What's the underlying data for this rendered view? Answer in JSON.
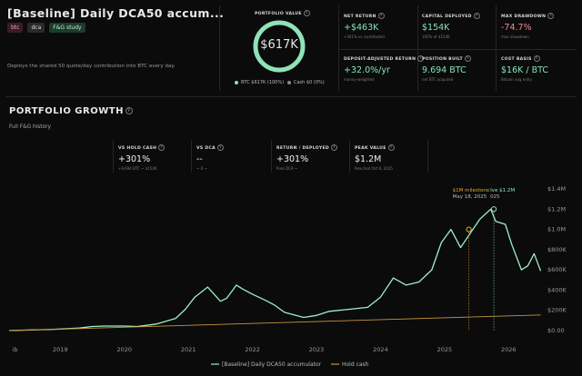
{
  "header": {
    "title": "[Baseline] Daily DCA50 accum...",
    "tags": [
      "btc",
      "dca",
      "F&G study"
    ],
    "description": "Deploys the shared 50 quote/day contribution into BTC every day."
  },
  "portfolio_value": {
    "label": "PORTFOLIO VALUE",
    "value": "$617K",
    "legend_btc": "BTC $617K (100%)",
    "legend_cash": "Cash $0 (0%)",
    "btc_color": "#8fe3b7",
    "cash_color": "#8a8a8a"
  },
  "stats": [
    {
      "label": "NET RETURN",
      "value": "+$463K",
      "sub": "+301% vs contributed",
      "color": "green"
    },
    {
      "label": "CAPITAL DEPLOYED",
      "value": "$154K",
      "sub": "100% of $154K",
      "color": "green"
    },
    {
      "label": "MAX DRAWDOWN",
      "value": "-74.7%",
      "sub": "max drawdown",
      "color": "red"
    },
    {
      "label": "DEPOSIT-ADJUSTED RETURN",
      "value": "+32.0%/yr",
      "sub": "money-weighted",
      "color": "green"
    },
    {
      "label": "POSITION BUILT",
      "value": "9.694 BTC",
      "sub": "net BTC acquired",
      "color": "green"
    },
    {
      "label": "COST BASIS",
      "value": "$16K / BTC",
      "sub": "Bitcoin avg entry",
      "color": "green"
    }
  ],
  "growth": {
    "title": "PORTFOLIO GROWTH",
    "subtitle": "Full F&G history",
    "kpis": [
      {
        "label": "VS HOLD CASH",
        "value": "+301%",
        "sub": "+9,694 BTC ~ $154K"
      },
      {
        "label": "VS DCA",
        "value": "--",
        "sub": "~ 0 ~"
      },
      {
        "label": "RETURN / DEPLOYED",
        "value": "+301%",
        "sub": "Pure DCA ~"
      },
      {
        "label": "PEAK VALUE",
        "value": "$1.2M",
        "sub": "Reached Oct 6, 2025"
      }
    ]
  },
  "chart_data": {
    "type": "line",
    "x_ticks": [
      "ib",
      "2019",
      "2020",
      "2021",
      "2022",
      "2023",
      "2024",
      "2025",
      "2026"
    ],
    "y_ticks": [
      "$1.4M",
      "$1.2M",
      "$1.0M",
      "$800K",
      "$600K",
      "$400K",
      "$200K",
      "$0.00"
    ],
    "ylim": [
      0,
      1400000
    ],
    "xlim": [
      2018.2,
      2026.55
    ],
    "grid": false,
    "legend_position": "bottom-center",
    "series": [
      {
        "name": "[Baseline] Daily DCA50 accumulator",
        "color": "#9ff0c6",
        "x": [
          2018.2,
          2018.5,
          2018.8,
          2019.0,
          2019.3,
          2019.5,
          2019.7,
          2020.0,
          2020.2,
          2020.5,
          2020.8,
          2020.95,
          2021.1,
          2021.3,
          2021.5,
          2021.6,
          2021.75,
          2021.85,
          2022.0,
          2022.2,
          2022.35,
          2022.5,
          2022.8,
          2023.0,
          2023.2,
          2023.5,
          2023.8,
          2024.0,
          2024.2,
          2024.4,
          2024.6,
          2024.8,
          2024.95,
          2025.1,
          2025.25,
          2025.4,
          2025.55,
          2025.72,
          2025.8,
          2025.95,
          2026.05,
          2026.2,
          2026.3,
          2026.4,
          2026.5
        ],
        "y": [
          0,
          5000,
          10000,
          15000,
          25000,
          40000,
          45000,
          45000,
          40000,
          65000,
          120000,
          210000,
          330000,
          430000,
          290000,
          320000,
          450000,
          410000,
          360000,
          300000,
          250000,
          180000,
          130000,
          150000,
          190000,
          210000,
          230000,
          330000,
          520000,
          450000,
          480000,
          600000,
          870000,
          1000000,
          820000,
          960000,
          1100000,
          1200000,
          1080000,
          1050000,
          850000,
          600000,
          640000,
          760000,
          590000
        ]
      },
      {
        "name": "Hold cash",
        "color": "#c9943c",
        "x": [
          2018.2,
          2026.5
        ],
        "y": [
          0,
          154000
        ]
      }
    ],
    "annotations": [
      {
        "text": "$1M milestone",
        "sub": "May 18, 2025",
        "x": 2025.38,
        "y": 1000000,
        "color": "#e0a53d"
      },
      {
        "text": "Ive $1.2M",
        "sub": "025",
        "x": 2025.77,
        "y": 1200000,
        "color": "#8fe3b7"
      }
    ]
  }
}
